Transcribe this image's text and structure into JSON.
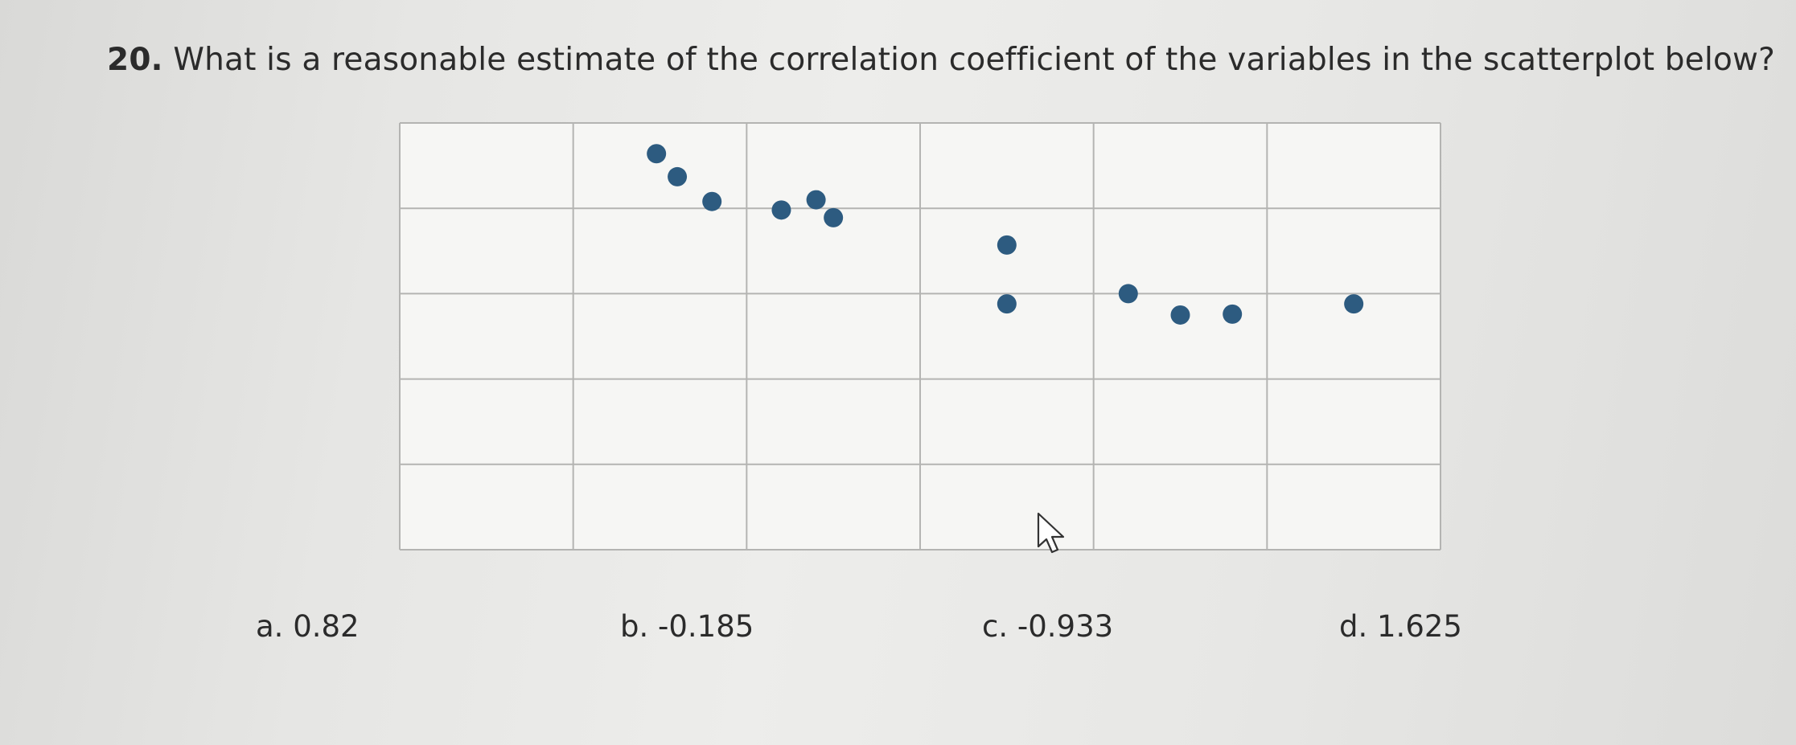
{
  "question": {
    "number": "20.",
    "text": "What is a reasonable estimate of the correlation coefficient of the variables in the scatterplot below?"
  },
  "answers": [
    {
      "letter": "a.",
      "value": "0.82"
    },
    {
      "letter": "b.",
      "value": "-0.185"
    },
    {
      "letter": "c.",
      "value": "-0.933"
    },
    {
      "letter": "d.",
      "value": "1.625"
    }
  ],
  "colors": {
    "point": "#2d5b80",
    "grid": "#b4b4b2",
    "plot_background": "#f6f6f4"
  },
  "chart_data": {
    "type": "scatter",
    "title": "",
    "xlabel": "",
    "ylabel": "",
    "grid": true,
    "grid_columns": 6,
    "grid_rows": 5,
    "xlim": [
      0,
      6
    ],
    "ylim": [
      0,
      5
    ],
    "points": [
      {
        "x": 1.48,
        "y": 4.64
      },
      {
        "x": 1.6,
        "y": 4.37
      },
      {
        "x": 1.8,
        "y": 4.08
      },
      {
        "x": 2.2,
        "y": 3.98
      },
      {
        "x": 2.4,
        "y": 4.1
      },
      {
        "x": 2.5,
        "y": 3.89
      },
      {
        "x": 3.5,
        "y": 3.57
      },
      {
        "x": 3.5,
        "y": 2.88
      },
      {
        "x": 4.2,
        "y": 3.0
      },
      {
        "x": 4.5,
        "y": 2.75
      },
      {
        "x": 4.8,
        "y": 2.76
      },
      {
        "x": 5.5,
        "y": 2.88
      }
    ]
  }
}
